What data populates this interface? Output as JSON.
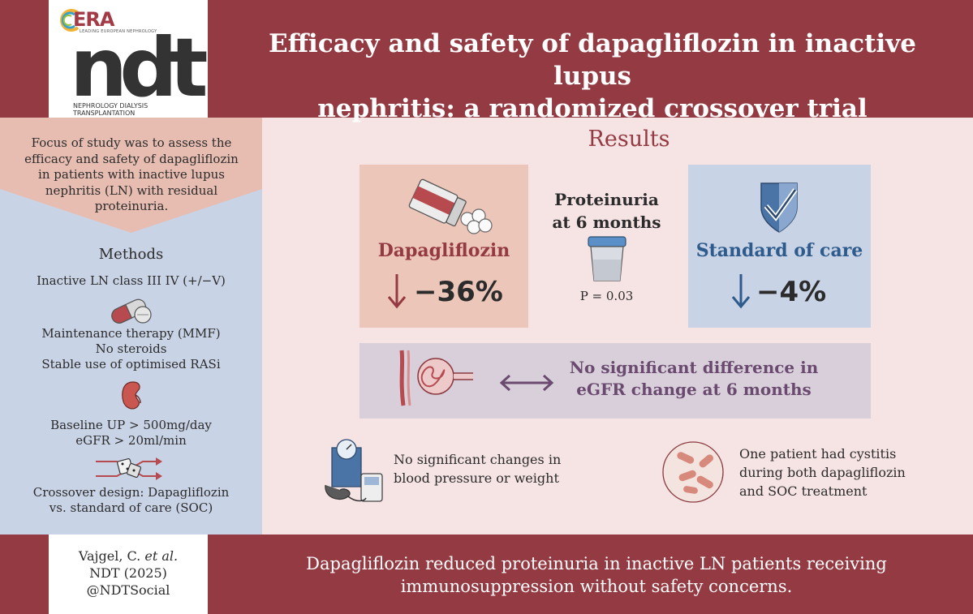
{
  "header": {
    "logo_era": "ERA",
    "logo_era_sub": "LEADING EUROPEAN NEPHROLOGY",
    "logo_ndt": "ndt",
    "logo_ndt_sub": "NEPHROLOGY DIALYSIS TRANSPLANTATION",
    "title_line1": "Efficacy and safety of dapagliflozin in inactive lupus",
    "title_line2": "nephritis: a randomized crossover trial"
  },
  "focus": {
    "line1": "Focus of study was to assess the",
    "line2": "efficacy and safety of dapagliflozin",
    "line3": "in patients with inactive lupus",
    "line4": "nephritis (LN) with residual",
    "line5": "proteinuria."
  },
  "methods": {
    "title": "Methods",
    "inactive": "Inactive LN class III IV (+/−V)",
    "maintenance": "Maintenance therapy (MMF)",
    "steroids": "No steroids",
    "rasi": "Stable use of optimised RASi",
    "baseline_up": "Baseline UP > 500mg/day",
    "egfr": "eGFR > 20ml/min",
    "crossover1": "Crossover design: Dapagliflozin",
    "crossover2": "vs. standard of care (SOC)",
    "icons": [
      "capsule-icon",
      "kidney-icon",
      "crossover-dice-icon"
    ]
  },
  "results": {
    "title": "Results",
    "dapa_label": "Dapagliflozin",
    "dapa_change": "−36%",
    "soc_label": "Standard of care",
    "soc_change": "−4%",
    "prot_line1": "Proteinuria",
    "prot_line2": "at 6 months",
    "p_value": "P = 0.03",
    "egfr_line1": "No significant difference in",
    "egfr_line2": "eGFR change at 6 months",
    "bp_line1": "No significant changes in",
    "bp_line2": "blood pressure or weight",
    "cyst_line1": "One patient had cystitis",
    "cyst_line2": "during both dapagliflozin",
    "cyst_line3": "and SOC treatment",
    "colors": {
      "dapa": "#943a42",
      "soc": "#2e5b8c",
      "egfr": "#6a4a6e"
    },
    "icons": [
      "pill-bottle-icon",
      "urine-cup-icon",
      "shield-check-icon",
      "glomerulus-icon",
      "double-arrow-icon",
      "scale-bp-icon",
      "bacteria-icon"
    ]
  },
  "footer": {
    "cite_line1": "Vajgel, C.",
    "cite_etal": "et al.",
    "cite_line2": "NDT (2025)",
    "cite_line3": "@NDTSocial",
    "conclusion_line1": "Dapagliflozin reduced proteinuria in inactive LN patients receiving",
    "conclusion_line2": "immunosuppression without safety concerns."
  },
  "theme": {
    "brand": "#943a42",
    "background": "#f6e3e3",
    "left_panel": "#c9d3e6",
    "focus_box": "#e7bdb1"
  }
}
